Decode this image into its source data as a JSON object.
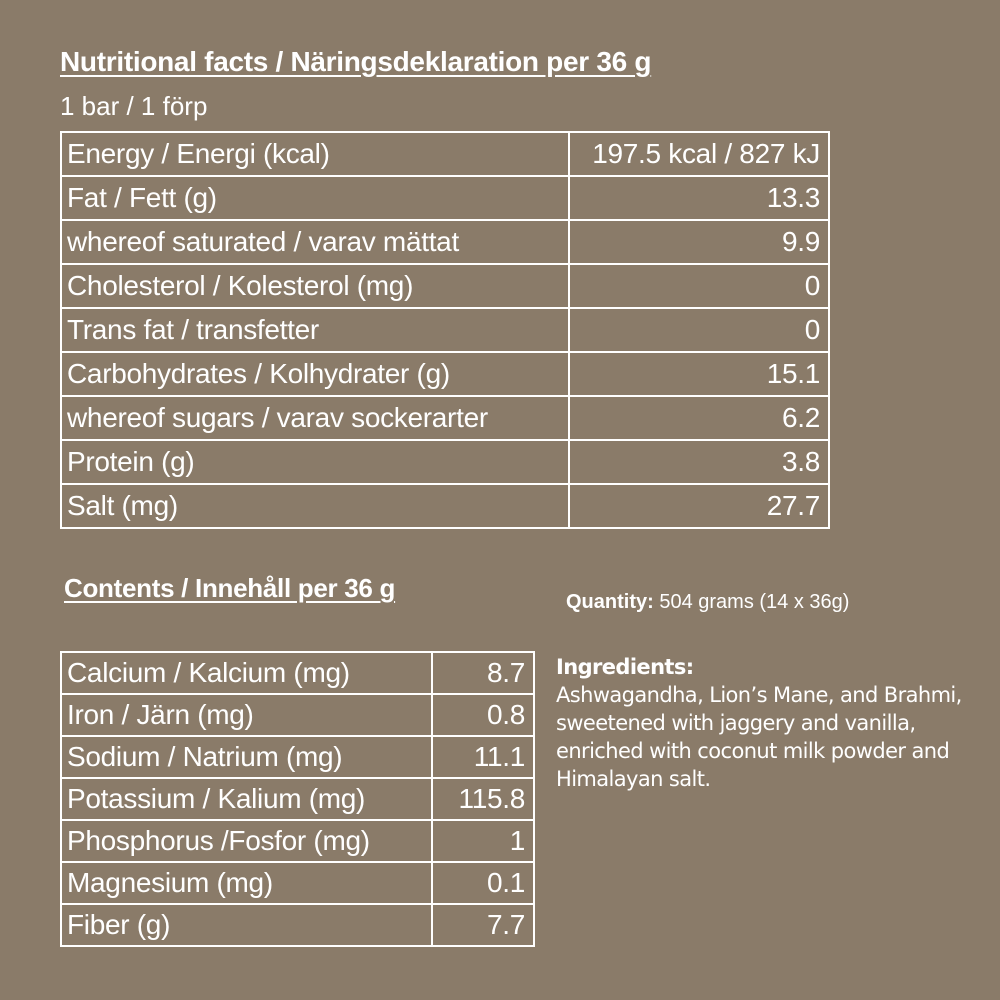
{
  "header": {
    "title": "Nutritional facts / Näringsdeklaration per 36 g",
    "serving": "1 bar / 1 förp"
  },
  "nutrition": {
    "rows": [
      {
        "label": "Energy / Energi (kcal)",
        "value": "197.5 kcal / 827 kJ"
      },
      {
        "label": "Fat / Fett (g)",
        "value": "13.3"
      },
      {
        "label": "whereof saturated / varav mättat",
        "value": "9.9"
      },
      {
        "label": "Cholesterol / Kolesterol (mg)",
        "value": "0"
      },
      {
        "label": "Trans fat / transfetter",
        "value": "0"
      },
      {
        "label": "Carbohydrates / Kolhydrater (g)",
        "value": "15.1"
      },
      {
        "label": "whereof sugars / varav sockerarter",
        "value": "6.2"
      },
      {
        "label": "Protein (g)",
        "value": "3.8"
      },
      {
        "label": "Salt (mg)",
        "value": "27.7"
      }
    ]
  },
  "contents": {
    "title": "Contents / Innehåll per 36 g",
    "rows": [
      {
        "label": "Calcium / Kalcium (mg)",
        "value": "8.7"
      },
      {
        "label": "Iron / Järn (mg)",
        "value": "0.8"
      },
      {
        "label": "Sodium / Natrium (mg)",
        "value": "11.1"
      },
      {
        "label": "Potassium / Kalium (mg)",
        "value": "115.8"
      },
      {
        "label": "Phosphorus /Fosfor (mg)",
        "value": "1"
      },
      {
        "label": "Magnesium (mg)",
        "value": "0.1"
      },
      {
        "label": "Fiber (g)",
        "value": "7.7"
      }
    ]
  },
  "quantity": {
    "label": "Quantity:",
    "value": " 504 grams (14 x 36g)"
  },
  "ingredients": {
    "label": "Ingredients:",
    "text": "Ashwagandha, Lion’s Mane, and Brahmi, sweetened with jaggery and vanilla, enriched with coconut milk powder and Himalayan salt."
  },
  "colors": {
    "background": "#8a7b69",
    "text": "#ffffff"
  }
}
